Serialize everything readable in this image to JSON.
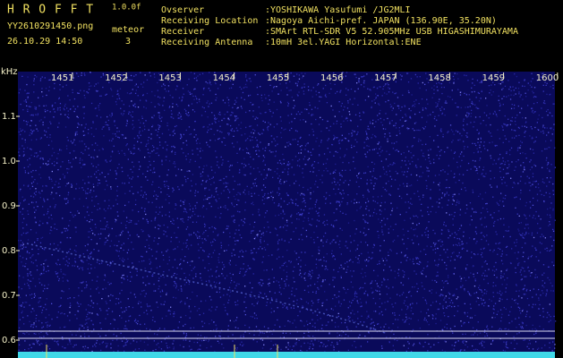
{
  "header": {
    "app": "H R O F F T",
    "version": "1.0.0f",
    "file": "YY2610291450.png",
    "datetime": "26.10.29 14:50",
    "mode": "meteor",
    "count": 3,
    "info": [
      {
        "label": "Ovserver",
        "value": ":YOSHIKAWA Yasufumi /JG2MLI"
      },
      {
        "label": "Receiving Location",
        "value": ":Nagoya Aichi-pref. JAPAN (136.90E, 35.20N)"
      },
      {
        "label": "Receiver",
        "value": ":SMArt RTL-SDR V5 52.905MHz USB HIGASHIMURAYAMA"
      },
      {
        "label": "Receiving Antenna",
        "value": ":10mH 3el.YAGI Horizontal:ENE"
      }
    ]
  },
  "chart_data": {
    "type": "spectrogram",
    "y_label": "kHz",
    "categories": [
      "1451",
      "1452",
      "1453",
      "1454",
      "1455",
      "1456",
      "1457",
      "1458",
      "1459",
      "1600"
    ],
    "ylim": [
      0.57,
      1.2
    ],
    "yticks": [
      1.1,
      {
        "value": 1,
        "label": "1.0"
      },
      0.9,
      0.8,
      0.7,
      0.6
    ]
  }
}
